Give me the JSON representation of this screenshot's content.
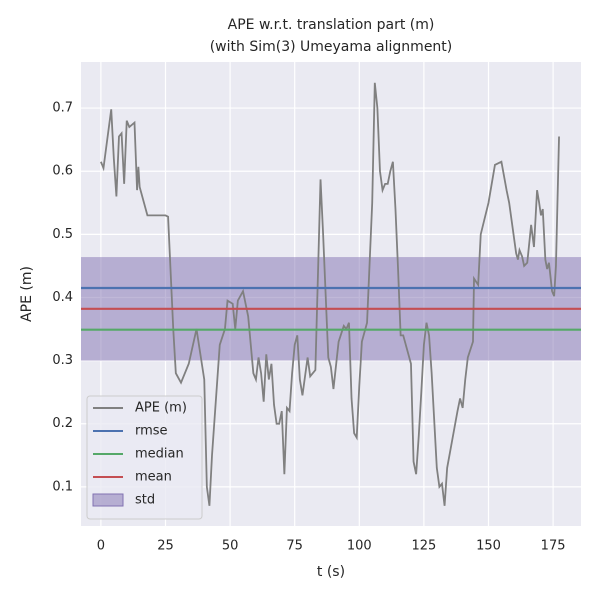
{
  "chart_data": {
    "type": "line",
    "title": "APE w.r.t. translation part (m)",
    "subtitle": "(with Sim(3) Umeyama alignment)",
    "x_label": "t (s)",
    "y_label": "APE (m)",
    "x": [
      0,
      1,
      4,
      5,
      6,
      7,
      8,
      9,
      10,
      11,
      13,
      14,
      14.5,
      15,
      18,
      25,
      26,
      28,
      29,
      31,
      34,
      37,
      40,
      41,
      42,
      43,
      46,
      48,
      49,
      51,
      52,
      53,
      55,
      57,
      58,
      59,
      60,
      61,
      62,
      63,
      64,
      65,
      66,
      67,
      68,
      69,
      70,
      71,
      72,
      73,
      74,
      75,
      76,
      77,
      78,
      80,
      81,
      83,
      85,
      86,
      88,
      89,
      90,
      92,
      94,
      95,
      96,
      97,
      98,
      99,
      100,
      101,
      103,
      105,
      106,
      107,
      108,
      109,
      110,
      111,
      112,
      113,
      114,
      115,
      116,
      117,
      120,
      121,
      122,
      123,
      124,
      125,
      126,
      127,
      128,
      130,
      131,
      132,
      133,
      134,
      136,
      138,
      139,
      140,
      141,
      142,
      144,
      144.4,
      146,
      147,
      150,
      152.5,
      155,
      157,
      158,
      160.7,
      161.4,
      162,
      163,
      163.8,
      165,
      166.5,
      167.6,
      168.8,
      169.6,
      170.3,
      171,
      172,
      172.7,
      173.4,
      174.6,
      175.4,
      176.1,
      177.3
    ],
    "series": [
      {
        "name": "APE (m)",
        "color": "#808080",
        "values": [
          0.615,
          0.605,
          0.698,
          0.62,
          0.56,
          0.655,
          0.66,
          0.58,
          0.68,
          0.67,
          0.677,
          0.57,
          0.607,
          0.575,
          0.53,
          0.53,
          0.528,
          0.35,
          0.28,
          0.265,
          0.295,
          0.35,
          0.27,
          0.1,
          0.07,
          0.15,
          0.325,
          0.35,
          0.395,
          0.39,
          0.35,
          0.395,
          0.41,
          0.37,
          0.325,
          0.28,
          0.27,
          0.305,
          0.28,
          0.235,
          0.31,
          0.27,
          0.295,
          0.23,
          0.2,
          0.2,
          0.22,
          0.12,
          0.225,
          0.22,
          0.28,
          0.325,
          0.34,
          0.27,
          0.245,
          0.305,
          0.275,
          0.285,
          0.587,
          0.5,
          0.305,
          0.29,
          0.255,
          0.33,
          0.355,
          0.35,
          0.36,
          0.24,
          0.185,
          0.178,
          0.26,
          0.33,
          0.36,
          0.55,
          0.74,
          0.7,
          0.6,
          0.57,
          0.58,
          0.58,
          0.6,
          0.615,
          0.54,
          0.445,
          0.34,
          0.34,
          0.295,
          0.14,
          0.12,
          0.18,
          0.25,
          0.325,
          0.36,
          0.34,
          0.28,
          0.13,
          0.1,
          0.105,
          0.07,
          0.13,
          0.175,
          0.22,
          0.24,
          0.225,
          0.27,
          0.305,
          0.33,
          0.43,
          0.42,
          0.5,
          0.55,
          0.61,
          0.615,
          0.57,
          0.55,
          0.47,
          0.46,
          0.475,
          0.465,
          0.45,
          0.455,
          0.515,
          0.48,
          0.57,
          0.55,
          0.53,
          0.54,
          0.46,
          0.445,
          0.455,
          0.41,
          0.402,
          0.45,
          0.655
        ]
      }
    ],
    "reference_lines": [
      {
        "name": "rmse",
        "color": "#4c72b0",
        "value": 0.415
      },
      {
        "name": "median",
        "color": "#55a868",
        "value": 0.349
      },
      {
        "name": "mean",
        "color": "#c44e52",
        "value": 0.382
      }
    ],
    "band": {
      "name": "std",
      "color": "#8172b2",
      "value": 0.082
    },
    "xlim": [
      -7.7,
      185.8
    ],
    "ylim": [
      0.038,
      0.773
    ],
    "xticks": [
      0,
      25,
      50,
      75,
      100,
      125,
      150,
      175
    ],
    "yticks": [
      0.1,
      0.2,
      0.3,
      0.4,
      0.5,
      0.6,
      0.7
    ],
    "grid": true,
    "legend": "lower left"
  }
}
